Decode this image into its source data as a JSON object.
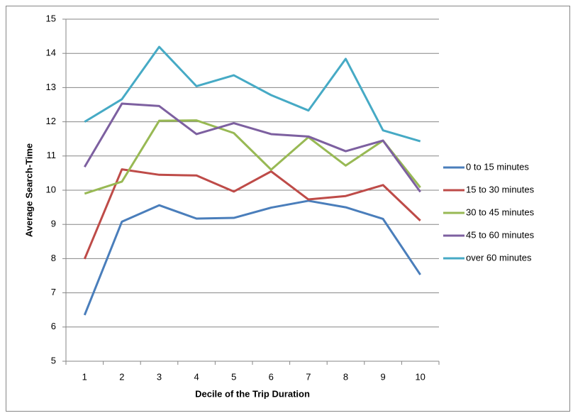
{
  "chart_data": {
    "type": "line",
    "x_label": "Decile of the Trip Duration",
    "y_label": "Average Search-Time",
    "categories": [
      1,
      2,
      3,
      4,
      5,
      6,
      7,
      8,
      9,
      10
    ],
    "series": [
      {
        "name": "0 to 15 minutes",
        "color": "#4a7ebb",
        "values": [
          6.35,
          9.08,
          9.56,
          9.17,
          9.19,
          9.49,
          9.69,
          9.5,
          9.16,
          7.53
        ]
      },
      {
        "name": "15 to 30 minutes",
        "color": "#be4b48",
        "values": [
          7.99,
          10.61,
          10.45,
          10.43,
          9.96,
          10.55,
          9.73,
          9.83,
          10.15,
          9.11
        ]
      },
      {
        "name": "30 to 45 minutes",
        "color": "#98b954",
        "values": [
          9.9,
          10.25,
          12.03,
          12.04,
          11.67,
          10.6,
          11.55,
          10.72,
          11.45,
          10.08
        ]
      },
      {
        "name": "45 to 60 minutes",
        "color": "#7d60a0",
        "values": [
          10.68,
          12.53,
          12.46,
          11.64,
          11.96,
          11.64,
          11.57,
          11.14,
          11.45,
          9.95
        ]
      },
      {
        "name": "over 60 minutes",
        "color": "#46aac5",
        "values": [
          12.0,
          12.66,
          14.19,
          13.04,
          13.36,
          12.78,
          12.33,
          13.84,
          11.75,
          11.43
        ]
      }
    ],
    "ylim": [
      5,
      15
    ],
    "yticks": [
      5,
      6,
      7,
      8,
      9,
      10,
      11,
      12,
      13,
      14,
      15
    ],
    "grid": true,
    "legend": "right"
  }
}
